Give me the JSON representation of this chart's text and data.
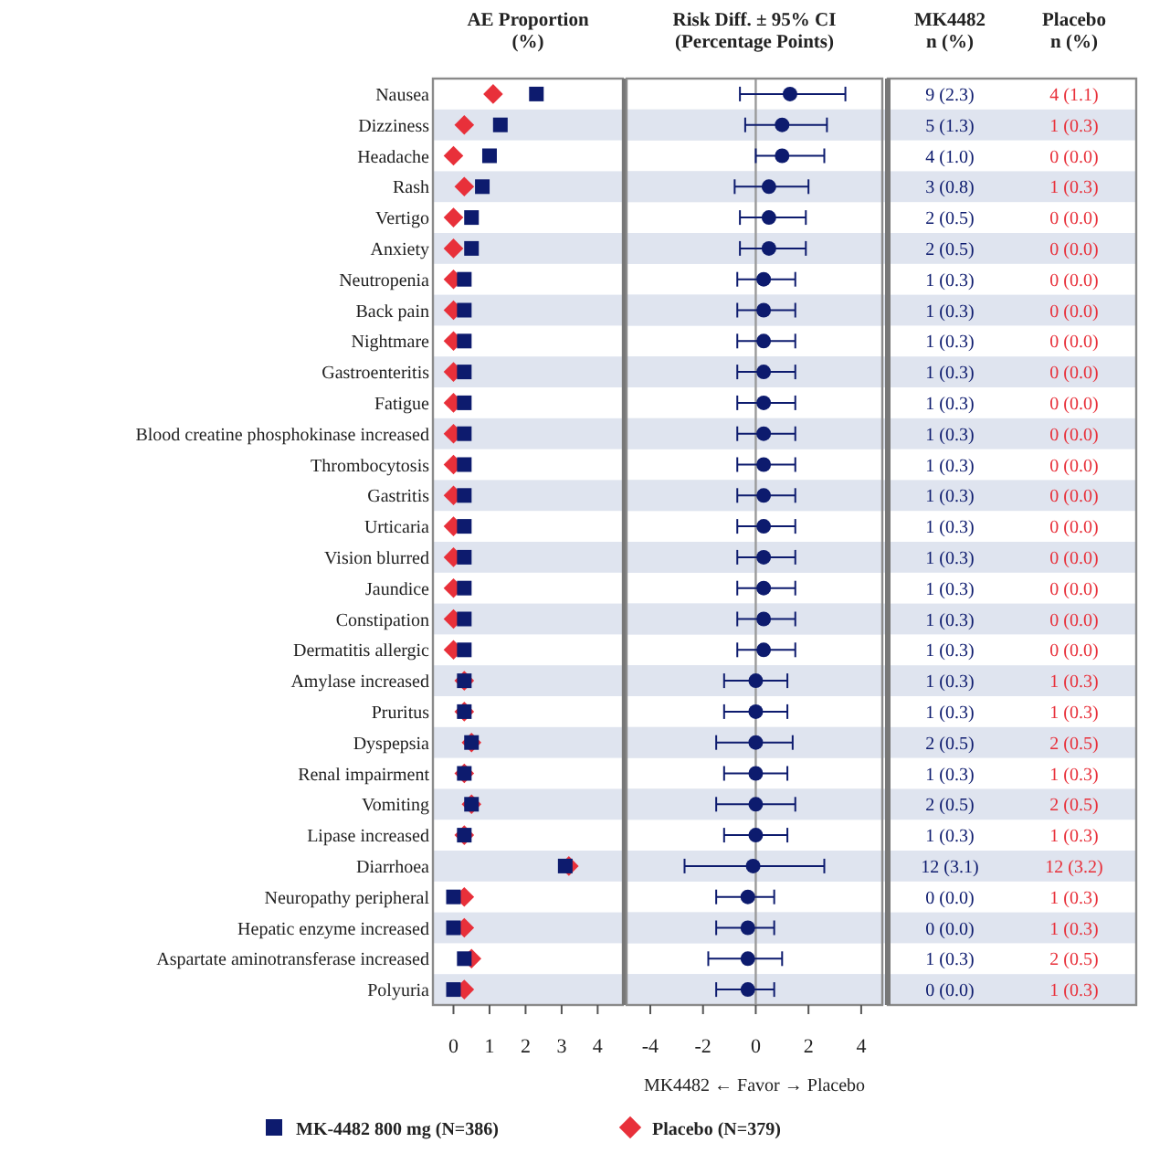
{
  "chart_data": [
    {
      "type": "scatter",
      "orientation": "horizontal",
      "title": "AE Proportion\n(%)",
      "legend": "bottom",
      "xlim": [
        -0.57,
        4.7
      ],
      "xticks": [
        0,
        1,
        2,
        3,
        4
      ],
      "categories": [
        "Nausea",
        "Dizziness",
        "Headache",
        "Rash",
        "Vertigo",
        "Anxiety",
        "Neutropenia",
        "Back pain",
        "Nightmare",
        "Gastroenteritis",
        "Fatigue",
        "Blood creatine phosphokinase increased",
        "Thrombocytosis",
        "Gastritis",
        "Urticaria",
        "Vision blurred",
        "Jaundice",
        "Constipation",
        "Dermatitis allergic",
        "Amylase increased",
        "Pruritus",
        "Dyspepsia",
        "Renal impairment",
        "Vomiting",
        "Lipase increased",
        "Diarrhoea",
        "Neuropathy peripheral",
        "Hepatic enzyme increased",
        "Aspartate aminotransferase increased",
        "Polyuria"
      ],
      "annotations": [
        "MK4482\nn (%)",
        "Placebo\nn (%)"
      ],
      "series": [
        {
          "name": "MK-4482 800 mg (N=386)",
          "color": "#0d1b6e",
          "marker": "square",
          "values": [
            2.3,
            1.3,
            1.0,
            0.8,
            0.5,
            0.5,
            0.3,
            0.3,
            0.3,
            0.3,
            0.3,
            0.3,
            0.3,
            0.3,
            0.3,
            0.3,
            0.3,
            0.3,
            0.3,
            0.3,
            0.3,
            0.5,
            0.3,
            0.5,
            0.3,
            3.1,
            0.0,
            0.0,
            0.3,
            0.0
          ],
          "value_labels": [
            "9 (2.3)",
            "5 (1.3)",
            "4 (1.0)",
            "3 (0.8)",
            "2 (0.5)",
            "2 (0.5)",
            "1 (0.3)",
            "1 (0.3)",
            "1 (0.3)",
            "1 (0.3)",
            "1 (0.3)",
            "1 (0.3)",
            "1 (0.3)",
            "1 (0.3)",
            "1 (0.3)",
            "1 (0.3)",
            "1 (0.3)",
            "1 (0.3)",
            "1 (0.3)",
            "1 (0.3)",
            "1 (0.3)",
            "2 (0.5)",
            "1 (0.3)",
            "2 (0.5)",
            "1 (0.3)",
            "12 (3.1)",
            "0 (0.0)",
            "0 (0.0)",
            "1 (0.3)",
            "0 (0.0)"
          ]
        },
        {
          "name": "Placebo (N=379)",
          "color": "#e8303a",
          "marker": "diamond",
          "values": [
            1.1,
            0.3,
            0.0,
            0.3,
            0.0,
            0.0,
            0.0,
            0.0,
            0.0,
            0.0,
            0.0,
            0.0,
            0.0,
            0.0,
            0.0,
            0.0,
            0.0,
            0.0,
            0.0,
            0.3,
            0.3,
            0.5,
            0.3,
            0.5,
            0.3,
            3.2,
            0.3,
            0.3,
            0.5,
            0.3
          ],
          "value_labels": [
            "4 (1.1)",
            "1 (0.3)",
            "0 (0.0)",
            "1 (0.3)",
            "0 (0.0)",
            "0 (0.0)",
            "0 (0.0)",
            "0 (0.0)",
            "0 (0.0)",
            "0 (0.0)",
            "0 (0.0)",
            "0 (0.0)",
            "0 (0.0)",
            "0 (0.0)",
            "0 (0.0)",
            "0 (0.0)",
            "0 (0.0)",
            "0 (0.0)",
            "0 (0.0)",
            "1 (0.3)",
            "1 (0.3)",
            "2 (0.5)",
            "1 (0.3)",
            "2 (0.5)",
            "1 (0.3)",
            "12 (3.2)",
            "1 (0.3)",
            "1 (0.3)",
            "2 (0.5)",
            "1 (0.3)"
          ]
        }
      ]
    },
    {
      "type": "scatter",
      "orientation": "horizontal",
      "title": "Risk Diff. ± 95% CI\n(Percentage Points)",
      "xlabel": "MK4482 ← Favor → Placebo",
      "tick_labels": "x",
      "xlim": [
        -4.9,
        4.8
      ],
      "xticks": [
        -4,
        -2,
        0,
        2,
        4
      ],
      "ref_lines": [
        {
          "axis": "x",
          "value": 0,
          "color": "#9a9a9a"
        }
      ],
      "series": [
        {
          "color": "#0d1b6e",
          "marker": "circle",
          "values": [
            1.3,
            1.0,
            1.0,
            0.5,
            0.5,
            0.5,
            0.3,
            0.3,
            0.3,
            0.3,
            0.3,
            0.3,
            0.3,
            0.3,
            0.3,
            0.3,
            0.3,
            0.3,
            0.3,
            0.0,
            0.0,
            0.0,
            0.0,
            0.0,
            0.0,
            -0.1,
            -0.3,
            -0.3,
            -0.3,
            -0.3
          ],
          "errors": [
            [
              -0.6,
              3.4
            ],
            [
              -0.4,
              2.7
            ],
            [
              0.0,
              2.6
            ],
            [
              -0.8,
              2.0
            ],
            [
              -0.6,
              1.9
            ],
            [
              -0.6,
              1.9
            ],
            [
              -0.7,
              1.5
            ],
            [
              -0.7,
              1.5
            ],
            [
              -0.7,
              1.5
            ],
            [
              -0.7,
              1.5
            ],
            [
              -0.7,
              1.5
            ],
            [
              -0.7,
              1.5
            ],
            [
              -0.7,
              1.5
            ],
            [
              -0.7,
              1.5
            ],
            [
              -0.7,
              1.5
            ],
            [
              -0.7,
              1.5
            ],
            [
              -0.7,
              1.5
            ],
            [
              -0.7,
              1.5
            ],
            [
              -0.7,
              1.5
            ],
            [
              -1.2,
              1.2
            ],
            [
              -1.2,
              1.2
            ],
            [
              -1.5,
              1.4
            ],
            [
              -1.2,
              1.2
            ],
            [
              -1.5,
              1.5
            ],
            [
              -1.2,
              1.2
            ],
            [
              -2.7,
              2.6
            ],
            [
              -1.5,
              0.7
            ],
            [
              -1.5,
              0.7
            ],
            [
              -1.8,
              1.0
            ],
            [
              -1.5,
              0.7
            ]
          ]
        }
      ]
    }
  ]
}
